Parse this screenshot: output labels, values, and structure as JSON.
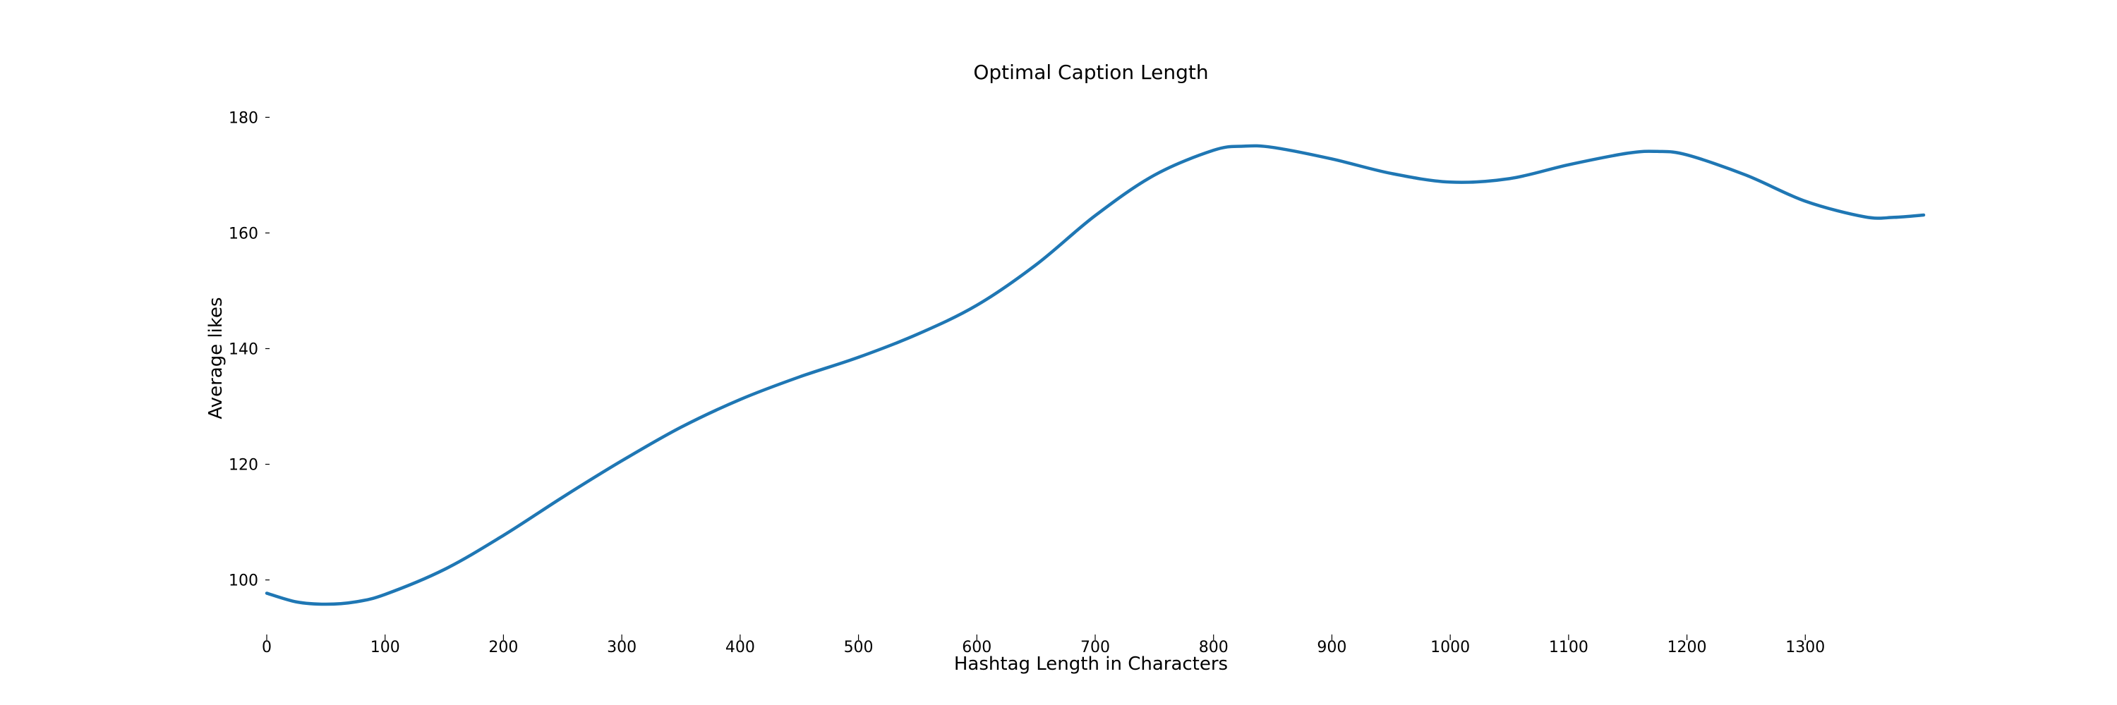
{
  "chart_data": {
    "type": "line",
    "title": "Optimal Caption Length",
    "xlabel": "Hashtag Length in Characters",
    "ylabel": "Average likes",
    "xlim": [
      0,
      1400
    ],
    "ylim": [
      93,
      182
    ],
    "xticks": [
      0,
      100,
      200,
      300,
      400,
      500,
      600,
      700,
      800,
      900,
      1000,
      1100,
      1200,
      1300
    ],
    "yticks": [
      100,
      120,
      140,
      160,
      180
    ],
    "grid": false,
    "line_color": "#1f77b4",
    "series": [
      {
        "x": [
          0,
          25,
          50,
          75,
          100,
          150,
          200,
          250,
          300,
          350,
          400,
          450,
          500,
          550,
          600,
          650,
          700,
          750,
          800,
          825,
          850,
          900,
          950,
          1000,
          1050,
          1100,
          1150,
          1175,
          1200,
          1250,
          1300,
          1350,
          1375,
          1400
        ],
        "y": [
          97.7,
          96.2,
          95.8,
          96.2,
          97.5,
          101.8,
          107.7,
          114.3,
          120.6,
          126.4,
          131.2,
          135.1,
          138.5,
          142.5,
          147.5,
          154.5,
          163.0,
          170.0,
          174.3,
          175.0,
          174.8,
          172.8,
          170.3,
          168.8,
          169.4,
          171.8,
          173.8,
          174.1,
          173.5,
          170.0,
          165.5,
          162.8,
          162.7,
          163.1
        ]
      }
    ]
  }
}
